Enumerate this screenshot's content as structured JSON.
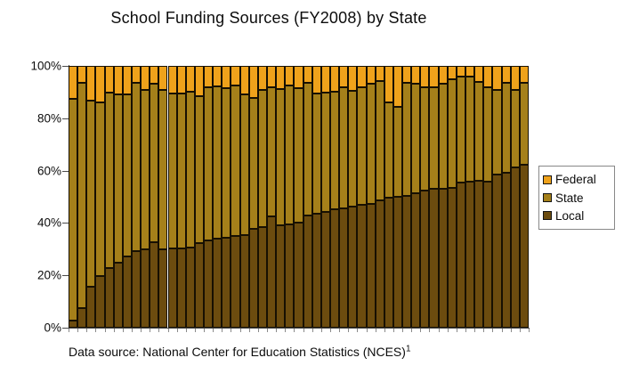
{
  "title": "School Funding Sources (FY2008) by State",
  "caption": {
    "text": "Data source: National Center for Education Statistics (NCES)",
    "superscript": "1"
  },
  "colors": {
    "federal": "#EFA21B",
    "state": "#A5801A",
    "local": "#6C4C0F",
    "bar_outline": "#171002",
    "axis": "#4a4a4a",
    "tick": "#8a8a8a"
  },
  "legend": {
    "position": "right",
    "entries": [
      {
        "label": "Federal",
        "color": "#EFA21B"
      },
      {
        "label": "State",
        "color": "#A5801A"
      },
      {
        "label": "Local",
        "color": "#6C4C0F"
      }
    ]
  },
  "chart_data": {
    "type": "bar",
    "stacked": true,
    "units": "percent of total funding",
    "num_bars": 51,
    "xlabel": "",
    "ylabel": "",
    "ylim": [
      0,
      100
    ],
    "yticks": [
      {
        "label": "0%",
        "value": 0
      },
      {
        "label": "20%",
        "value": 20
      },
      {
        "label": "40%",
        "value": 40
      },
      {
        "label": "60%",
        "value": 60
      },
      {
        "label": "80%",
        "value": 80
      },
      {
        "label": "100%",
        "value": 100
      }
    ],
    "x_tick_marks_per_bar_boundary": true,
    "grid": false,
    "series": [
      {
        "name": "Local",
        "color": "#6C4C0F",
        "values": [
          2.6,
          7.5,
          15.7,
          19.7,
          22.8,
          24.8,
          27.1,
          29.4,
          29.9,
          32.8,
          29.9,
          30.3,
          30.2,
          30.5,
          32.2,
          33.3,
          34.1,
          34.5,
          35.0,
          35.3,
          37.9,
          38.4,
          42.4,
          39.0,
          39.6,
          40.0,
          43.0,
          43.6,
          44.1,
          45.1,
          45.5,
          46.4,
          47.0,
          47.3,
          48.7,
          49.6,
          50.1,
          50.4,
          51.2,
          52.5,
          53.0,
          53.2,
          53.5,
          55.5,
          55.7,
          56.1,
          55.7,
          58.4,
          59.2,
          61.2,
          62.1
        ]
      },
      {
        "name": "State",
        "color": "#A5801A",
        "values": [
          84.9,
          86.0,
          71.1,
          66.5,
          67.1,
          64.3,
          62.0,
          64.2,
          60.9,
          60.3,
          60.9,
          59.3,
          59.4,
          59.7,
          56.3,
          58.4,
          58.0,
          56.9,
          57.5,
          53.8,
          49.7,
          52.4,
          49.5,
          52.0,
          52.9,
          51.5,
          50.6,
          46.0,
          45.8,
          45.1,
          46.4,
          44.2,
          44.9,
          45.8,
          45.5,
          36.6,
          34.4,
          43.2,
          42.1,
          39.5,
          39.0,
          40.1,
          41.3,
          40.5,
          40.3,
          37.9,
          36.3,
          32.4,
          34.4,
          29.7,
          31.6
        ]
      },
      {
        "name": "Federal",
        "color": "#EFA21B",
        "values": [
          12.5,
          6.5,
          13.2,
          13.8,
          10.1,
          10.9,
          10.9,
          6.4,
          9.2,
          6.9,
          9.2,
          10.4,
          10.4,
          9.8,
          11.5,
          8.3,
          7.9,
          8.6,
          7.5,
          10.9,
          12.4,
          9.2,
          8.1,
          9.0,
          7.5,
          8.5,
          6.4,
          10.4,
          10.1,
          9.8,
          8.1,
          9.4,
          8.1,
          6.9,
          5.8,
          13.8,
          15.5,
          6.4,
          6.7,
          8.0,
          8.0,
          6.7,
          5.2,
          4.0,
          4.0,
          6.0,
          8.0,
          9.2,
          6.4,
          9.1,
          6.3
        ]
      }
    ]
  }
}
